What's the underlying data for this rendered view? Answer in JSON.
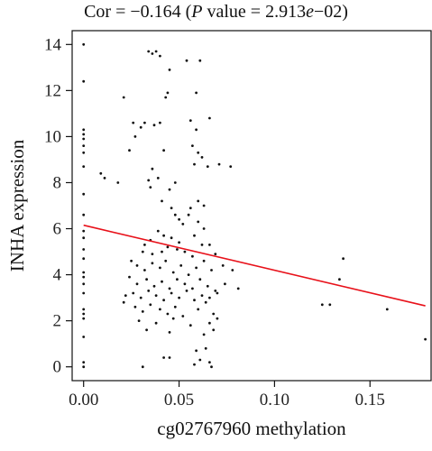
{
  "chart_data": {
    "type": "scatter",
    "title": {
      "prefix": "Cor = −0.164 (",
      "p_label": "P",
      "middle": " value = 2.913",
      "exp_e": "e",
      "suffix": "−02)"
    },
    "xlabel": "cg02767960 methylation",
    "ylabel": "INHA expression",
    "xlim": [
      -0.006,
      0.182
    ],
    "ylim": [
      -0.6,
      14.6
    ],
    "xticks": [
      0.0,
      0.05,
      0.1,
      0.15
    ],
    "xtick_labels": [
      "0.00",
      "0.05",
      "0.10",
      "0.15"
    ],
    "yticks": [
      0,
      2,
      4,
      6,
      8,
      10,
      12,
      14
    ],
    "ytick_labels": [
      "0",
      "2",
      "4",
      "6",
      "8",
      "10",
      "12",
      "14"
    ],
    "grid": false,
    "regression_line": {
      "x": [
        0.0,
        0.179
      ],
      "y": [
        6.15,
        2.65
      ],
      "color": "#e8111a"
    },
    "point_color": "#111111",
    "points": [
      [
        0.0,
        14.0
      ],
      [
        0.0,
        12.4
      ],
      [
        0.0,
        10.3
      ],
      [
        0.0,
        10.1
      ],
      [
        0.0,
        9.9
      ],
      [
        0.0,
        9.6
      ],
      [
        0.0,
        9.3
      ],
      [
        0.0,
        8.7
      ],
      [
        0.0,
        7.5
      ],
      [
        0.0,
        6.6
      ],
      [
        0.0,
        5.9
      ],
      [
        0.0,
        5.6
      ],
      [
        0.0,
        5.1
      ],
      [
        0.0,
        4.7
      ],
      [
        0.0,
        4.1
      ],
      [
        0.0,
        3.9
      ],
      [
        0.0,
        3.6
      ],
      [
        0.0,
        3.2
      ],
      [
        0.0,
        2.5
      ],
      [
        0.0,
        2.3
      ],
      [
        0.0,
        2.1
      ],
      [
        0.0,
        1.3
      ],
      [
        0.0,
        0.2
      ],
      [
        0.0,
        0.0
      ],
      [
        0.009,
        8.4
      ],
      [
        0.011,
        8.2
      ],
      [
        0.018,
        8.0
      ],
      [
        0.021,
        11.7
      ],
      [
        0.024,
        9.4
      ],
      [
        0.026,
        10.6
      ],
      [
        0.027,
        10.0
      ],
      [
        0.03,
        10.4
      ],
      [
        0.032,
        10.6
      ],
      [
        0.034,
        13.7
      ],
      [
        0.036,
        13.6
      ],
      [
        0.038,
        13.7
      ],
      [
        0.04,
        13.5
      ],
      [
        0.045,
        12.9
      ],
      [
        0.043,
        11.7
      ],
      [
        0.044,
        11.9
      ],
      [
        0.037,
        10.5
      ],
      [
        0.04,
        10.6
      ],
      [
        0.042,
        9.4
      ],
      [
        0.036,
        8.6
      ],
      [
        0.039,
        8.2
      ],
      [
        0.034,
        8.1
      ],
      [
        0.035,
        7.8
      ],
      [
        0.045,
        7.7
      ],
      [
        0.048,
        8.0
      ],
      [
        0.041,
        7.2
      ],
      [
        0.046,
        6.9
      ],
      [
        0.048,
        6.6
      ],
      [
        0.05,
        6.4
      ],
      [
        0.052,
        6.2
      ],
      [
        0.054,
        13.3
      ],
      [
        0.061,
        13.3
      ],
      [
        0.059,
        11.9
      ],
      [
        0.056,
        10.7
      ],
      [
        0.059,
        10.3
      ],
      [
        0.066,
        10.8
      ],
      [
        0.057,
        9.6
      ],
      [
        0.06,
        9.3
      ],
      [
        0.062,
        9.1
      ],
      [
        0.058,
        8.8
      ],
      [
        0.065,
        8.7
      ],
      [
        0.071,
        8.8
      ],
      [
        0.077,
        8.7
      ],
      [
        0.06,
        7.2
      ],
      [
        0.063,
        7.0
      ],
      [
        0.056,
        6.9
      ],
      [
        0.055,
        6.6
      ],
      [
        0.06,
        6.3
      ],
      [
        0.063,
        6.0
      ],
      [
        0.058,
        5.7
      ],
      [
        0.05,
        5.4
      ],
      [
        0.046,
        5.6
      ],
      [
        0.042,
        5.7
      ],
      [
        0.039,
        5.9
      ],
      [
        0.035,
        5.5
      ],
      [
        0.032,
        5.3
      ],
      [
        0.031,
        5.0
      ],
      [
        0.036,
        4.9
      ],
      [
        0.041,
        5.0
      ],
      [
        0.044,
        5.2
      ],
      [
        0.049,
        5.1
      ],
      [
        0.053,
        5.0
      ],
      [
        0.057,
        4.8
      ],
      [
        0.062,
        5.3
      ],
      [
        0.066,
        5.3
      ],
      [
        0.069,
        4.9
      ],
      [
        0.025,
        4.6
      ],
      [
        0.028,
        4.4
      ],
      [
        0.032,
        4.2
      ],
      [
        0.036,
        4.5
      ],
      [
        0.04,
        4.3
      ],
      [
        0.043,
        4.6
      ],
      [
        0.047,
        4.1
      ],
      [
        0.051,
        4.4
      ],
      [
        0.055,
        4.0
      ],
      [
        0.059,
        4.3
      ],
      [
        0.063,
        4.6
      ],
      [
        0.067,
        4.2
      ],
      [
        0.073,
        4.4
      ],
      [
        0.078,
        4.2
      ],
      [
        0.024,
        3.9
      ],
      [
        0.028,
        3.6
      ],
      [
        0.033,
        3.8
      ],
      [
        0.037,
        3.5
      ],
      [
        0.041,
        3.7
      ],
      [
        0.045,
        3.4
      ],
      [
        0.049,
        3.8
      ],
      [
        0.053,
        3.6
      ],
      [
        0.057,
        3.4
      ],
      [
        0.061,
        3.8
      ],
      [
        0.065,
        3.5
      ],
      [
        0.069,
        3.3
      ],
      [
        0.074,
        3.6
      ],
      [
        0.081,
        3.4
      ],
      [
        0.022,
        3.1
      ],
      [
        0.026,
        3.2
      ],
      [
        0.03,
        3.0
      ],
      [
        0.034,
        3.3
      ],
      [
        0.038,
        3.1
      ],
      [
        0.042,
        2.9
      ],
      [
        0.046,
        3.2
      ],
      [
        0.05,
        3.0
      ],
      [
        0.054,
        3.3
      ],
      [
        0.058,
        2.9
      ],
      [
        0.062,
        3.1
      ],
      [
        0.066,
        3.0
      ],
      [
        0.07,
        3.2
      ],
      [
        0.021,
        2.8
      ],
      [
        0.027,
        2.6
      ],
      [
        0.031,
        2.4
      ],
      [
        0.035,
        2.7
      ],
      [
        0.04,
        2.5
      ],
      [
        0.044,
        2.3
      ],
      [
        0.048,
        2.6
      ],
      [
        0.052,
        2.2
      ],
      [
        0.06,
        2.5
      ],
      [
        0.064,
        2.8
      ],
      [
        0.068,
        2.3
      ],
      [
        0.029,
        2.0
      ],
      [
        0.038,
        1.9
      ],
      [
        0.047,
        2.1
      ],
      [
        0.056,
        1.8
      ],
      [
        0.066,
        1.9
      ],
      [
        0.07,
        2.1
      ],
      [
        0.033,
        1.6
      ],
      [
        0.045,
        1.5
      ],
      [
        0.063,
        1.4
      ],
      [
        0.068,
        1.6
      ],
      [
        0.059,
        0.7
      ],
      [
        0.064,
        0.8
      ],
      [
        0.061,
        0.3
      ],
      [
        0.066,
        0.2
      ],
      [
        0.042,
        0.4
      ],
      [
        0.045,
        0.4
      ],
      [
        0.031,
        0.0
      ],
      [
        0.058,
        0.1
      ],
      [
        0.067,
        0.0
      ],
      [
        0.125,
        2.7
      ],
      [
        0.129,
        2.7
      ],
      [
        0.134,
        3.8
      ],
      [
        0.136,
        4.7
      ],
      [
        0.159,
        2.5
      ],
      [
        0.179,
        1.2
      ]
    ]
  }
}
